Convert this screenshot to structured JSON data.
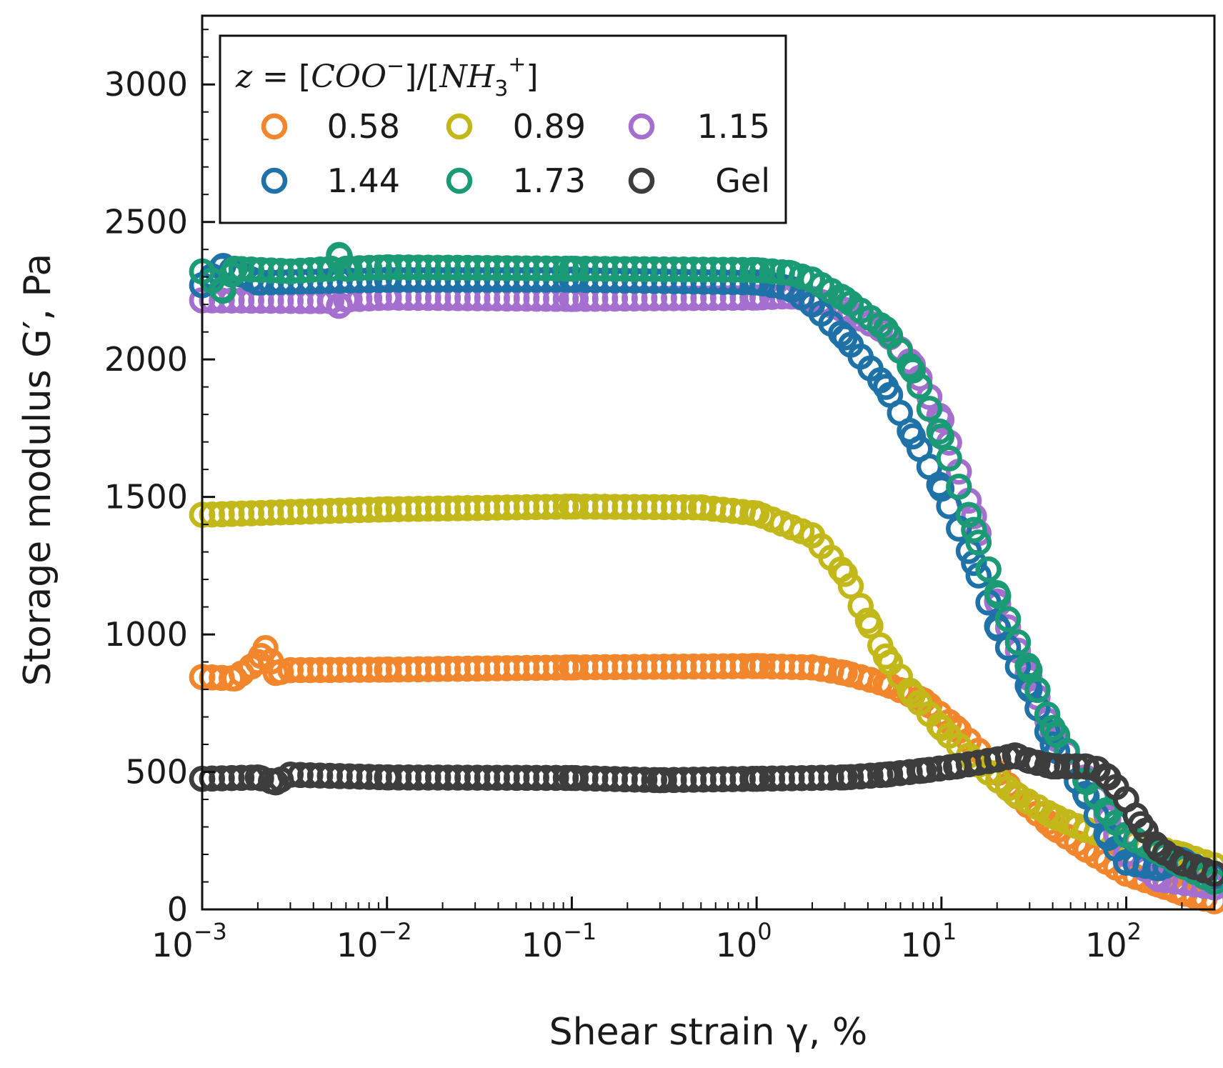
{
  "chart_data": {
    "type": "scatter",
    "x_scale": "log",
    "xlabel": "Shear strain γ, %",
    "ylabel": "Storage modulus G′, Pa",
    "xlim": [
      0.001,
      300
    ],
    "ylim": [
      0,
      3250
    ],
    "x_ticks": [
      {
        "value": 0.001,
        "base": "10",
        "exp": "−3"
      },
      {
        "value": 0.01,
        "base": "10",
        "exp": "−2"
      },
      {
        "value": 0.1,
        "base": "10",
        "exp": "−1"
      },
      {
        "value": 1,
        "base": "10",
        "exp": "0"
      },
      {
        "value": 10,
        "base": "10",
        "exp": "1"
      },
      {
        "value": 100,
        "base": "10",
        "exp": "2"
      }
    ],
    "y_ticks": [
      {
        "value": 0,
        "label": "0"
      },
      {
        "value": 500,
        "label": "500"
      },
      {
        "value": 1000,
        "label": "1000"
      },
      {
        "value": 1500,
        "label": "1500"
      },
      {
        "value": 2000,
        "label": "2000"
      },
      {
        "value": 2500,
        "label": "2500"
      },
      {
        "value": 3000,
        "label": "3000"
      }
    ],
    "legend": {
      "title": {
        "z": "z",
        "eq": " = [",
        "coo": "COO",
        "sup_minus": "−",
        "sep": "]/[",
        "nh": "NH",
        "sub3": "3",
        "sup_plus": "+",
        "close": "]"
      },
      "placement": "top-left"
    },
    "points_per_series": 104,
    "series": [
      {
        "name": "0.58",
        "color": "#f2862c",
        "anchors": [
          [
            0.001,
            845
          ],
          [
            0.0015,
            840
          ],
          [
            0.002,
            900
          ],
          [
            0.0022,
            950
          ],
          [
            0.0025,
            860
          ],
          [
            0.003,
            870
          ],
          [
            0.01,
            872
          ],
          [
            0.1,
            880
          ],
          [
            1,
            885
          ],
          [
            2,
            880
          ],
          [
            3,
            860
          ],
          [
            5,
            820
          ],
          [
            8,
            760
          ],
          [
            12,
            660
          ],
          [
            18,
            540
          ],
          [
            25,
            420
          ],
          [
            40,
            300
          ],
          [
            60,
            220
          ],
          [
            100,
            130
          ],
          [
            150,
            90
          ],
          [
            200,
            60
          ],
          [
            300,
            30
          ]
        ]
      },
      {
        "name": "0.89",
        "color": "#c3b81a",
        "anchors": [
          [
            0.001,
            1435
          ],
          [
            0.003,
            1445
          ],
          [
            0.01,
            1455
          ],
          [
            0.1,
            1465
          ],
          [
            0.5,
            1462
          ],
          [
            1,
            1440
          ],
          [
            2,
            1360
          ],
          [
            3,
            1220
          ],
          [
            4,
            1050
          ],
          [
            5,
            920
          ],
          [
            7,
            780
          ],
          [
            10,
            660
          ],
          [
            15,
            540
          ],
          [
            25,
            420
          ],
          [
            40,
            340
          ],
          [
            60,
            290
          ],
          [
            100,
            250
          ],
          [
            200,
            200
          ],
          [
            300,
            160
          ]
        ]
      },
      {
        "name": "1.15",
        "color": "#a56fd0",
        "anchors": [
          [
            0.001,
            2215
          ],
          [
            0.005,
            2212
          ],
          [
            0.0055,
            2195
          ],
          [
            0.006,
            2218
          ],
          [
            0.01,
            2225
          ],
          [
            0.1,
            2220
          ],
          [
            1,
            2225
          ],
          [
            1.5,
            2230
          ],
          [
            2,
            2220
          ],
          [
            3,
            2180
          ],
          [
            5,
            2100
          ],
          [
            7,
            1980
          ],
          [
            10,
            1780
          ],
          [
            15,
            1430
          ],
          [
            20,
            1120
          ],
          [
            30,
            840
          ],
          [
            40,
            640
          ],
          [
            60,
            480
          ],
          [
            80,
            330
          ],
          [
            100,
            200
          ],
          [
            150,
            110
          ],
          [
            300,
            80
          ]
        ]
      },
      {
        "name": "1.44",
        "color": "#1f72a8",
        "anchors": [
          [
            0.001,
            2270
          ],
          [
            0.0013,
            2340
          ],
          [
            0.002,
            2280
          ],
          [
            0.01,
            2290
          ],
          [
            0.1,
            2290
          ],
          [
            1,
            2280
          ],
          [
            1.5,
            2260
          ],
          [
            2,
            2200
          ],
          [
            3,
            2080
          ],
          [
            5,
            1900
          ],
          [
            7,
            1720
          ],
          [
            10,
            1530
          ],
          [
            15,
            1260
          ],
          [
            20,
            1030
          ],
          [
            30,
            800
          ],
          [
            40,
            600
          ],
          [
            60,
            420
          ],
          [
            80,
            260
          ],
          [
            100,
            170
          ],
          [
            150,
            150
          ],
          [
            200,
            180
          ],
          [
            300,
            120
          ]
        ]
      },
      {
        "name": "1.73",
        "color": "#1a9b76",
        "anchors": [
          [
            0.001,
            2320
          ],
          [
            0.0013,
            2250
          ],
          [
            0.0015,
            2330
          ],
          [
            0.003,
            2320
          ],
          [
            0.005,
            2330
          ],
          [
            0.0055,
            2380
          ],
          [
            0.006,
            2330
          ],
          [
            0.01,
            2335
          ],
          [
            0.1,
            2330
          ],
          [
            1,
            2325
          ],
          [
            1.5,
            2315
          ],
          [
            2,
            2290
          ],
          [
            3,
            2220
          ],
          [
            5,
            2110
          ],
          [
            7,
            1960
          ],
          [
            10,
            1720
          ],
          [
            15,
            1380
          ],
          [
            20,
            1150
          ],
          [
            30,
            870
          ],
          [
            40,
            660
          ],
          [
            60,
            470
          ],
          [
            80,
            350
          ],
          [
            100,
            270
          ],
          [
            150,
            210
          ],
          [
            200,
            160
          ],
          [
            300,
            100
          ]
        ]
      },
      {
        "name": "Gel",
        "color": "#3d3d3d",
        "anchors": [
          [
            0.001,
            475
          ],
          [
            0.002,
            480
          ],
          [
            0.0025,
            462
          ],
          [
            0.003,
            490
          ],
          [
            0.01,
            480
          ],
          [
            0.1,
            478
          ],
          [
            0.3,
            470
          ],
          [
            1,
            475
          ],
          [
            3,
            480
          ],
          [
            5,
            490
          ],
          [
            8,
            505
          ],
          [
            12,
            520
          ],
          [
            20,
            545
          ],
          [
            25,
            560
          ],
          [
            30,
            540
          ],
          [
            40,
            520
          ],
          [
            60,
            520
          ],
          [
            70,
            510
          ],
          [
            80,
            480
          ],
          [
            100,
            400
          ],
          [
            120,
            310
          ],
          [
            150,
            220
          ],
          [
            200,
            170
          ],
          [
            300,
            130
          ]
        ]
      }
    ]
  }
}
